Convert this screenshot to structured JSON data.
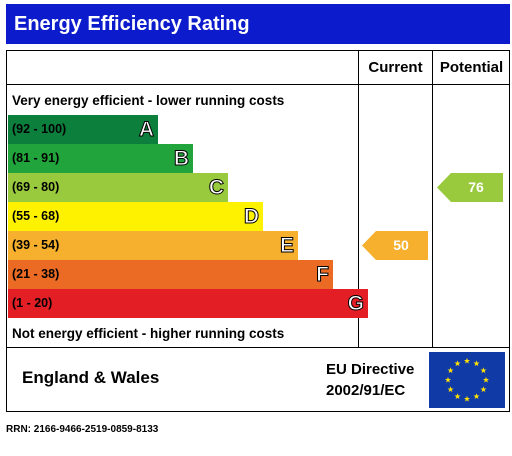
{
  "title": "Energy Efficiency Rating",
  "columns": {
    "current": "Current",
    "potential": "Potential"
  },
  "top_caption": "Very energy efficient - lower running costs",
  "bottom_caption": "Not energy efficient - higher running costs",
  "bands": [
    {
      "range": "(92 - 100)",
      "letter": "A",
      "color": "#0d7f3d"
    },
    {
      "range": "(81 - 91)",
      "letter": "B",
      "color": "#21a43b"
    },
    {
      "range": "(69 - 80)",
      "letter": "C",
      "color": "#99c93d"
    },
    {
      "range": "(55 - 68)",
      "letter": "D",
      "color": "#fff200"
    },
    {
      "range": "(39 - 54)",
      "letter": "E",
      "color": "#f6b02d"
    },
    {
      "range": "(21 - 38)",
      "letter": "F",
      "color": "#ec6b24"
    },
    {
      "range": "(1 - 20)",
      "letter": "G",
      "color": "#e31e25"
    }
  ],
  "current": {
    "value": "50",
    "band": "E",
    "color": "#f6b02d"
  },
  "potential": {
    "value": "76",
    "band": "C",
    "color": "#99c93d"
  },
  "footer": {
    "region": "England & Wales",
    "directive_line1": "EU Directive",
    "directive_line2": "2002/91/EC",
    "flag_icon": "eu-flag-icon"
  },
  "rrn": "RRN: 2166-9466-2519-0859-8133"
}
